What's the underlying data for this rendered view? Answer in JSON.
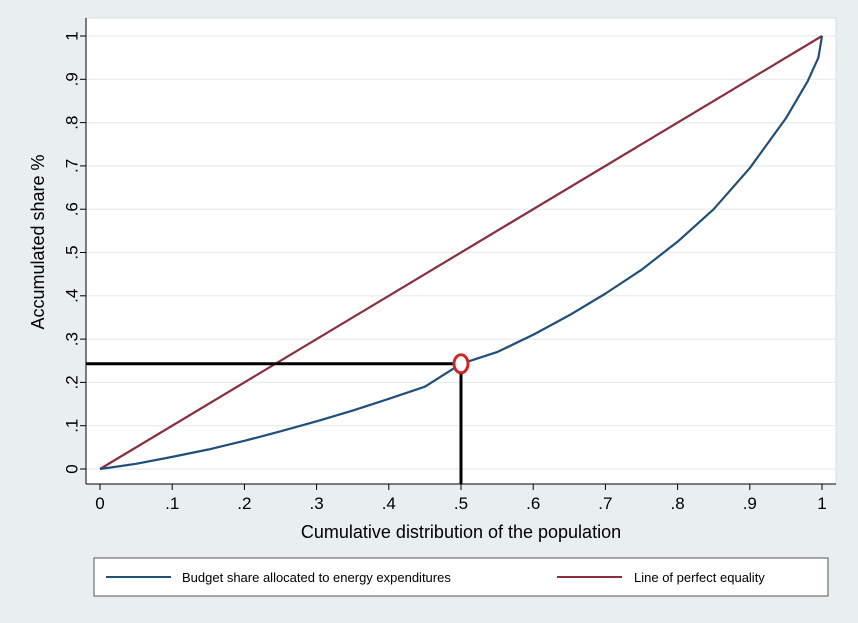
{
  "chart_data": {
    "type": "line",
    "title": "",
    "xlabel": "Cumulative distribution of the population",
    "ylabel": "Accumulated share %",
    "xlim": [
      0,
      1
    ],
    "ylim": [
      0,
      1
    ],
    "x_ticks": [
      0,
      0.1,
      0.2,
      0.3,
      0.4,
      0.5,
      0.6,
      0.7,
      0.8,
      0.9,
      1
    ],
    "x_tick_labels": [
      "0",
      ".1",
      ".2",
      ".3",
      ".4",
      ".5",
      ".6",
      ".7",
      ".8",
      ".9",
      "1"
    ],
    "y_ticks": [
      0,
      0.1,
      0.2,
      0.3,
      0.4,
      0.5,
      0.6,
      0.7,
      0.8,
      0.9,
      1
    ],
    "y_tick_labels": [
      "0",
      ".1",
      ".2",
      ".3",
      ".4",
      ".5",
      ".6",
      ".7",
      ".8",
      ".9",
      "1"
    ],
    "grid": "horizontal",
    "legend_position": "bottom",
    "series": [
      {
        "name": "Budget share allocated to energy expenditures",
        "color": "#1f4f7a",
        "x": [
          0,
          0.05,
          0.1,
          0.15,
          0.2,
          0.25,
          0.3,
          0.35,
          0.4,
          0.45,
          0.5,
          0.55,
          0.6,
          0.65,
          0.7,
          0.75,
          0.8,
          0.85,
          0.9,
          0.95,
          0.98,
          0.995,
          1
        ],
        "y": [
          0,
          0.012,
          0.028,
          0.045,
          0.065,
          0.087,
          0.11,
          0.135,
          0.162,
          0.19,
          0.243,
          0.27,
          0.31,
          0.355,
          0.405,
          0.46,
          0.525,
          0.6,
          0.695,
          0.81,
          0.895,
          0.95,
          1
        ]
      },
      {
        "name": "Line of perfect equality",
        "color": "#8b2d3c",
        "x": [
          0,
          1
        ],
        "y": [
          0,
          1
        ]
      }
    ],
    "annotation": {
      "marker": {
        "x": 0.5,
        "y": 0.243,
        "color": "#cc2a2a"
      },
      "reference_line_color": "#000000"
    }
  }
}
